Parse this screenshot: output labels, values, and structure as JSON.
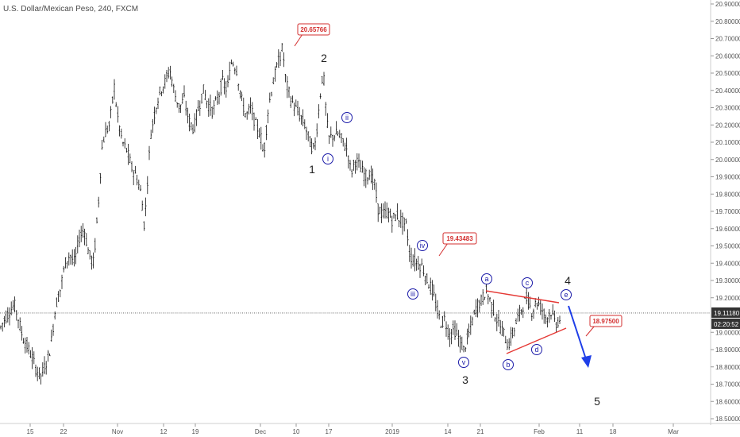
{
  "header": {
    "title": "U.S. Dollar/Mexican Peso, 240, FXCM"
  },
  "chart_data": {
    "type": "candlestick",
    "symbol": "U.S. Dollar/Mexican Peso, 240, FXCM",
    "y_ticks": [
      "20.90000",
      "20.80000",
      "20.70000",
      "20.60000",
      "20.50000",
      "20.40000",
      "20.30000",
      "20.20000",
      "20.10000",
      "20.00000",
      "19.90000",
      "19.80000",
      "19.70000",
      "19.60000",
      "19.50000",
      "19.40000",
      "19.30000",
      "19.20000",
      "19.00000",
      "18.90000",
      "18.80000",
      "18.70000",
      "18.60000",
      "18.50000"
    ],
    "x_ticks": [
      "15",
      "22",
      "Nov",
      "12",
      "19",
      "Dec",
      "10",
      "17",
      "2019",
      "14",
      "21",
      "Feb",
      "11",
      "18",
      "Mar"
    ],
    "price_path": [
      [
        0,
        19.02
      ],
      [
        6,
        19.08
      ],
      [
        12,
        19.12
      ],
      [
        18,
        19.16
      ],
      [
        22,
        19.1
      ],
      [
        28,
        18.98
      ],
      [
        34,
        18.92
      ],
      [
        40,
        18.86
      ],
      [
        46,
        18.78
      ],
      [
        52,
        18.75
      ],
      [
        58,
        18.82
      ],
      [
        64,
        18.92
      ],
      [
        70,
        19.15
      ],
      [
        76,
        19.25
      ],
      [
        82,
        19.4
      ],
      [
        88,
        19.45
      ],
      [
        94,
        19.4
      ],
      [
        100,
        19.55
      ],
      [
        106,
        19.6
      ],
      [
        112,
        19.45
      ],
      [
        118,
        19.4
      ],
      [
        124,
        19.75
      ],
      [
        128,
        20.05
      ],
      [
        132,
        20.15
      ],
      [
        138,
        20.2
      ],
      [
        144,
        20.42
      ],
      [
        148,
        20.25
      ],
      [
        154,
        20.1
      ],
      [
        160,
        20.05
      ],
      [
        166,
        19.95
      ],
      [
        172,
        19.9
      ],
      [
        178,
        19.8
      ],
      [
        182,
        19.6
      ],
      [
        186,
        19.9
      ],
      [
        190,
        20.15
      ],
      [
        196,
        20.3
      ],
      [
        202,
        20.4
      ],
      [
        208,
        20.45
      ],
      [
        214,
        20.52
      ],
      [
        220,
        20.38
      ],
      [
        226,
        20.3
      ],
      [
        232,
        20.35
      ],
      [
        238,
        20.22
      ],
      [
        244,
        20.18
      ],
      [
        250,
        20.3
      ],
      [
        256,
        20.4
      ],
      [
        262,
        20.32
      ],
      [
        268,
        20.28
      ],
      [
        274,
        20.35
      ],
      [
        280,
        20.45
      ],
      [
        286,
        20.4
      ],
      [
        292,
        20.58
      ],
      [
        298,
        20.52
      ],
      [
        304,
        20.35
      ],
      [
        310,
        20.25
      ],
      [
        316,
        20.3
      ],
      [
        322,
        20.2
      ],
      [
        328,
        20.15
      ],
      [
        332,
        20.02
      ],
      [
        338,
        20.3
      ],
      [
        344,
        20.45
      ],
      [
        350,
        20.55
      ],
      [
        356,
        20.65
      ],
      [
        360,
        20.45
      ],
      [
        366,
        20.35
      ],
      [
        372,
        20.3
      ],
      [
        378,
        20.25
      ],
      [
        384,
        20.2
      ],
      [
        390,
        20.1
      ],
      [
        396,
        20.05
      ],
      [
        400,
        20.22
      ],
      [
        404,
        20.4
      ],
      [
        407,
        20.52
      ],
      [
        411,
        20.25
      ],
      [
        414,
        20.12
      ],
      [
        420,
        20.14
      ],
      [
        426,
        20.15
      ],
      [
        432,
        20.1
      ],
      [
        438,
        20.05
      ],
      [
        442,
        19.92
      ],
      [
        448,
        20.0
      ],
      [
        454,
        19.95
      ],
      [
        460,
        19.9
      ],
      [
        466,
        19.92
      ],
      [
        472,
        19.85
      ],
      [
        476,
        19.72
      ],
      [
        482,
        19.68
      ],
      [
        488,
        19.7
      ],
      [
        494,
        19.65
      ],
      [
        500,
        19.68
      ],
      [
        506,
        19.64
      ],
      [
        512,
        19.62
      ],
      [
        516,
        19.45
      ],
      [
        520,
        19.42
      ],
      [
        526,
        19.4
      ],
      [
        532,
        19.38
      ],
      [
        538,
        19.3
      ],
      [
        544,
        19.25
      ],
      [
        548,
        19.18
      ],
      [
        552,
        19.1
      ],
      [
        556,
        19.05
      ],
      [
        560,
        19.08
      ],
      [
        566,
        18.98
      ],
      [
        572,
        19.02
      ],
      [
        578,
        18.96
      ],
      [
        584,
        18.9
      ],
      [
        588,
        18.95
      ],
      [
        594,
        19.05
      ],
      [
        600,
        19.15
      ],
      [
        606,
        19.18
      ],
      [
        612,
        19.24
      ],
      [
        616,
        19.2
      ],
      [
        622,
        19.12
      ],
      [
        628,
        19.05
      ],
      [
        634,
        19.0
      ],
      [
        640,
        18.92
      ],
      [
        646,
        19.0
      ],
      [
        652,
        19.08
      ],
      [
        658,
        19.15
      ],
      [
        664,
        19.2
      ],
      [
        670,
        19.12
      ],
      [
        676,
        19.18
      ],
      [
        682,
        19.14
      ],
      [
        688,
        19.08
      ],
      [
        694,
        19.12
      ],
      [
        700,
        19.05
      ],
      [
        706,
        19.08
      ]
    ],
    "current_price": "19.11180",
    "countdown": "02:20:52",
    "callouts": [
      {
        "label": "20.65766",
        "target_price": 20.65766
      },
      {
        "label": "19.43483",
        "target_price": 19.43483
      },
      {
        "label": "18.97500",
        "target_price": 18.975
      }
    ],
    "wave_labels": [
      {
        "text": "1"
      },
      {
        "text": "2"
      },
      {
        "text": "3"
      },
      {
        "text": "4"
      },
      {
        "text": "5"
      }
    ],
    "sub_wave_labels": [
      {
        "text": "i"
      },
      {
        "text": "ii"
      },
      {
        "text": "iii"
      },
      {
        "text": "iv"
      },
      {
        "text": "v"
      },
      {
        "text": "a"
      },
      {
        "text": "b"
      },
      {
        "text": "c"
      },
      {
        "text": "d"
      },
      {
        "text": "e"
      }
    ],
    "colors": {
      "candle": "#111111",
      "trendline": "#e53935",
      "arrow": "#1e3ee8",
      "callout": "#d32f2f",
      "tag_bg": "#333333"
    }
  }
}
